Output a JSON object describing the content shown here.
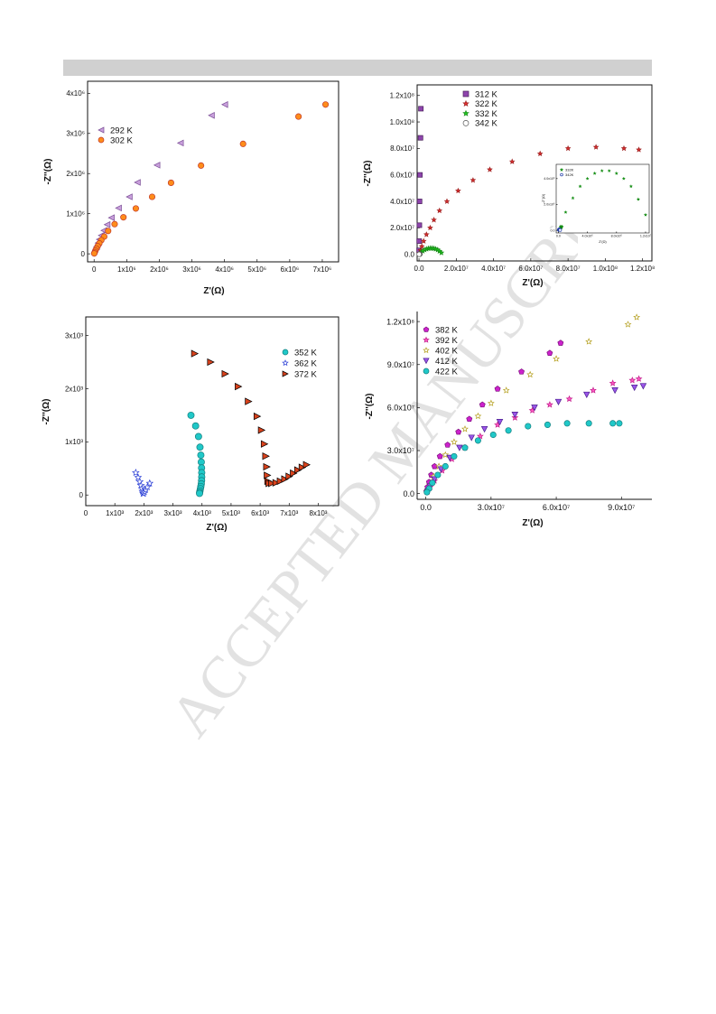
{
  "watermark": {
    "text": "ACCEPTED MANUSCRIPT",
    "color": "#dddddd"
  },
  "chart_data": [
    {
      "type": "scatter",
      "xlabel": "Z'(Ω)",
      "ylabel": "-Z''(Ω)",
      "xlim": [
        -200000,
        7500000
      ],
      "ylim": [
        -200000,
        4300000
      ],
      "xticks": [
        {
          "v": 0,
          "label": "0"
        },
        {
          "v": 1000000,
          "label": "1x10⁶"
        },
        {
          "v": 2000000,
          "label": "2x10⁶"
        },
        {
          "v": 3000000,
          "label": "3x10⁶"
        },
        {
          "v": 4000000,
          "label": "4x10⁶"
        },
        {
          "v": 5000000,
          "label": "5x10⁶"
        },
        {
          "v": 6000000,
          "label": "6x10⁶"
        },
        {
          "v": 7000000,
          "label": "7x10⁶"
        }
      ],
      "yticks": [
        {
          "v": 0,
          "label": "0"
        },
        {
          "v": 1000000,
          "label": "1x10⁶"
        },
        {
          "v": 2000000,
          "label": "2x10⁶"
        },
        {
          "v": 3000000,
          "label": "3x10⁶"
        },
        {
          "v": 4000000,
          "label": "4x10⁶"
        }
      ],
      "legend_position": "top-left",
      "series": [
        {
          "name": "292 K",
          "marker": "tri-left",
          "color": "#c9a0dc",
          "stroke": "#7a4e96",
          "x": [
            3600000,
            4010000,
            2650000,
            1930000,
            1330000,
            1080000,
            750000,
            530000,
            400000,
            300000,
            220000,
            160000,
            120000,
            80000
          ],
          "y": [
            3450000,
            3720000,
            2760000,
            2210000,
            1780000,
            1420000,
            1140000,
            900000,
            730000,
            580000,
            460000,
            360000,
            270000,
            180000
          ]
        },
        {
          "name": "302 K",
          "marker": "circle",
          "color": "#ff8c1a",
          "stroke": "#c0392b",
          "x": [
            7100000,
            6270000,
            4570000,
            3280000,
            2360000,
            1780000,
            1280000,
            900000,
            630000,
            430000,
            310000,
            220000,
            160000,
            110000,
            70000,
            40000,
            20000,
            5000
          ],
          "y": [
            3720000,
            3420000,
            2740000,
            2200000,
            1770000,
            1420000,
            1130000,
            910000,
            740000,
            570000,
            430000,
            340000,
            260000,
            190000,
            130000,
            80000,
            40000,
            10000
          ]
        }
      ]
    },
    {
      "type": "scatter",
      "xlabel": "Z'(Ω)",
      "ylabel": "-Z''(Ω)",
      "xlim": [
        -1000000,
        125000000
      ],
      "ylim": [
        -5000000,
        128000000
      ],
      "xticks": [
        {
          "v": 0,
          "label": "0.0"
        },
        {
          "v": 20000000,
          "label": "2.0x10⁷"
        },
        {
          "v": 40000000,
          "label": "4.0x10⁷"
        },
        {
          "v": 60000000,
          "label": "6.0x10⁷"
        },
        {
          "v": 80000000,
          "label": "8.0x10⁷"
        },
        {
          "v": 100000000,
          "label": "1.0x10⁸"
        },
        {
          "v": 120000000,
          "label": "1.2x10⁸"
        }
      ],
      "yticks": [
        {
          "v": 0,
          "label": "0.0"
        },
        {
          "v": 20000000,
          "label": "2.0x10⁷"
        },
        {
          "v": 40000000,
          "label": "4.0x10⁷"
        },
        {
          "v": 60000000,
          "label": "6.0x10⁷"
        },
        {
          "v": 80000000,
          "label": "8.0x10⁷"
        },
        {
          "v": 100000000,
          "label": "1.0x10⁸"
        },
        {
          "v": 120000000,
          "label": "1.2x10⁸"
        }
      ],
      "legend_position": "top-left",
      "series": [
        {
          "name": "312 K",
          "marker": "square",
          "color": "#8e44ad",
          "stroke": "#4a235a",
          "x": [
            1000000,
            800000,
            500000,
            300000,
            200000,
            100000,
            50000
          ],
          "y": [
            110000000,
            88000000,
            60000000,
            40000000,
            22000000,
            10000000,
            3000000
          ]
        },
        {
          "name": "322 K",
          "marker": "star",
          "color": "#e03030",
          "stroke": "#9b1c1c",
          "x": [
            118000000,
            110000000,
            95000000,
            80000000,
            65000000,
            50000000,
            38000000,
            29000000,
            21000000,
            15000000,
            11000000,
            8000000,
            6000000,
            4000000,
            2500000,
            1500000,
            800000,
            300000
          ],
          "y": [
            79000000,
            80000000,
            81000000,
            80000000,
            76000000,
            70000000,
            64000000,
            56000000,
            48000000,
            40000000,
            33000000,
            26000000,
            20000000,
            15000000,
            10000000,
            6000000,
            3000000,
            1000000
          ]
        },
        {
          "name": "332 K",
          "marker": "star",
          "color": "#22cc22",
          "stroke": "#138a13",
          "x": [
            12000000,
            11000000,
            10000000,
            9000000,
            8000000,
            7000000,
            6000000,
            5000000,
            4000000,
            3000000,
            2000000,
            1000000,
            300000
          ],
          "y": [
            1200000,
            2400000,
            3400000,
            4000000,
            4400000,
            4600000,
            4600000,
            4400000,
            4000000,
            3400000,
            2500000,
            1400000,
            300000
          ]
        },
        {
          "name": "342 K",
          "marker": "circle-open",
          "color": "#ffffff",
          "stroke": "#555555",
          "x": [
            500000,
            300000,
            100000
          ],
          "y": [
            200000,
            100000,
            30000
          ]
        }
      ],
      "inset": {
        "xlabel": "Z'(Ω)",
        "ylabel": "-Z''(Ω)",
        "xlim": [
          -300000,
          12500000
        ],
        "ylim": [
          -200000,
          5100000
        ],
        "xticks": [
          {
            "v": 0,
            "label": "0.0"
          },
          {
            "v": 4000000,
            "label": "4.0x10⁶"
          },
          {
            "v": 8000000,
            "label": "8.0x10⁶"
          },
          {
            "v": 12000000,
            "label": "1.2x10⁷"
          }
        ],
        "yticks": [
          {
            "v": 0,
            "label": "0.0"
          },
          {
            "v": 2000000,
            "label": "2.0x10⁶"
          },
          {
            "v": 4000000,
            "label": "4.0x10⁶"
          }
        ],
        "series": [
          {
            "name": "332K",
            "marker": "star",
            "color": "#22cc22",
            "stroke": "#138a13"
          },
          {
            "name": "342K",
            "marker": "circle-open",
            "color": "#ffffff",
            "stroke": "#1f3aa8"
          }
        ]
      }
    },
    {
      "type": "scatter",
      "xlabel": "Z'(Ω)",
      "ylabel": "-Z''(Ω)",
      "xlim": [
        0,
        8700
      ],
      "ylim": [
        -200,
        3350
      ],
      "xticks": [
        {
          "v": 0,
          "label": "0"
        },
        {
          "v": 1000,
          "label": "1x10³"
        },
        {
          "v": 2000,
          "label": "2x10³"
        },
        {
          "v": 3000,
          "label": "3x10³"
        },
        {
          "v": 4000,
          "label": "4x10³"
        },
        {
          "v": 5000,
          "label": "5x10³"
        },
        {
          "v": 6000,
          "label": "6x10³"
        },
        {
          "v": 7000,
          "label": "7x10³"
        },
        {
          "v": 8000,
          "label": "8x10³"
        }
      ],
      "yticks": [
        {
          "v": 0,
          "label": "0"
        },
        {
          "v": 1000,
          "label": "1x10³"
        },
        {
          "v": 2000,
          "label": "2x10³"
        },
        {
          "v": 3000,
          "label": "3x10³"
        }
      ],
      "legend_position": "top-right",
      "series": [
        {
          "name": "352 K",
          "marker": "circle",
          "color": "#20c8c8",
          "stroke": "#138080",
          "x": [
            3620,
            3780,
            3880,
            3930,
            3960,
            3975,
            3985,
            3990,
            3990,
            3985,
            3975,
            3960,
            3945,
            3930,
            3920,
            3915
          ],
          "y": [
            1500,
            1300,
            1100,
            900,
            750,
            620,
            510,
            420,
            340,
            270,
            210,
            160,
            120,
            80,
            50,
            30
          ]
        },
        {
          "name": "362 K",
          "marker": "star",
          "color": "#ffffff",
          "stroke": "#2b3fd6",
          "x": [
            1720,
            1800,
            1860,
            1900,
            1930,
            1950,
            1970,
            1990,
            2020,
            2060,
            2120,
            2200
          ],
          "y": [
            420,
            330,
            250,
            180,
            120,
            70,
            30,
            30,
            60,
            100,
            150,
            220
          ]
        },
        {
          "name": "372 K",
          "marker": "tri-right",
          "color": "#d9421c",
          "stroke": "#000000",
          "x": [
            3750,
            4300,
            4800,
            5250,
            5600,
            5900,
            6050,
            6150,
            6200,
            6230,
            6250,
            6270,
            6310,
            6400,
            6550,
            6700,
            6850,
            7000,
            7150,
            7300,
            7450,
            7600
          ],
          "y": [
            2660,
            2500,
            2280,
            2040,
            1760,
            1480,
            1220,
            960,
            730,
            530,
            370,
            260,
            220,
            220,
            230,
            260,
            300,
            350,
            410,
            470,
            520,
            570
          ]
        }
      ]
    },
    {
      "type": "scatter",
      "xlabel": "Z'(Ω)",
      "ylabel": "-Z''(Ω)",
      "xlim": [
        -4000000,
        104000000
      ],
      "ylim": [
        -4000000,
        127000000
      ],
      "xticks": [
        {
          "v": 0,
          "label": "0.0"
        },
        {
          "v": 30000000,
          "label": "3.0x10⁷"
        },
        {
          "v": 60000000,
          "label": "6.0x10⁷"
        },
        {
          "v": 90000000,
          "label": "9.0x10⁷"
        }
      ],
      "yticks": [
        {
          "v": 0,
          "label": "0.0"
        },
        {
          "v": 30000000,
          "label": "3.0x10⁷"
        },
        {
          "v": 60000000,
          "label": "6.0x10⁷"
        },
        {
          "v": 90000000,
          "label": "9.0x10⁷"
        },
        {
          "v": 120000000,
          "label": "1.2x10⁸"
        }
      ],
      "legend_position": "top-left",
      "series": [
        {
          "name": "382 K",
          "marker": "pentagon",
          "color": "#cc22cc",
          "stroke": "#7d117d",
          "x": [
            62000000,
            57000000,
            44000000,
            33000000,
            26000000,
            20000000,
            15000000,
            10000000,
            6500000,
            4000000,
            2500000,
            1500000,
            800000,
            300000
          ],
          "y": [
            105000000,
            98000000,
            85000000,
            73000000,
            62000000,
            52000000,
            43000000,
            34000000,
            26000000,
            19000000,
            13000000,
            8000000,
            4500000,
            1500000
          ]
        },
        {
          "name": "392 K",
          "marker": "star",
          "color": "#ff5ec4",
          "stroke": "#c2188a",
          "x": [
            98000000,
            95000000,
            86000000,
            77000000,
            66000000,
            57000000,
            49000000,
            41000000,
            33000000,
            25000000,
            18000000,
            12000000,
            7500000,
            4000000,
            2000000,
            800000
          ],
          "y": [
            80000000,
            79000000,
            77000000,
            72000000,
            66000000,
            62000000,
            58000000,
            53000000,
            48000000,
            40000000,
            32000000,
            24000000,
            16000000,
            9000000,
            4500000,
            1500000
          ]
        },
        {
          "name": "402 K",
          "marker": "star",
          "color": "#ffffff",
          "stroke": "#b5a020",
          "x": [
            97000000,
            93000000,
            75000000,
            60000000,
            48000000,
            37000000,
            30000000,
            24000000,
            18000000,
            13000000,
            9000000,
            6000000,
            3500000,
            1800000,
            700000
          ],
          "y": [
            123000000,
            118000000,
            106000000,
            94000000,
            83000000,
            72000000,
            63000000,
            54000000,
            45000000,
            36000000,
            27000000,
            19000000,
            12000000,
            6000000,
            2000000
          ]
        },
        {
          "name": "412 K",
          "marker": "tri-down",
          "color": "#9a55e8",
          "stroke": "#4b1f8f",
          "x": [
            100000000,
            96000000,
            87000000,
            74000000,
            61000000,
            50000000,
            41000000,
            34000000,
            27000000,
            21000000,
            15500000,
            11000000,
            7000000,
            4000000,
            2000000,
            800000
          ],
          "y": [
            75000000,
            74000000,
            72000000,
            69000000,
            64000000,
            60000000,
            55000000,
            50000000,
            45000000,
            39000000,
            32000000,
            25000000,
            17000000,
            10000000,
            5000000,
            1500000
          ]
        },
        {
          "name": "422 K",
          "marker": "circle",
          "color": "#20c8c8",
          "stroke": "#138080",
          "x": [
            89000000,
            86000000,
            75000000,
            65000000,
            56000000,
            47000000,
            38000000,
            31000000,
            24000000,
            18000000,
            13000000,
            9000000,
            5500000,
            3000000,
            1500000,
            500000
          ],
          "y": [
            49000000,
            49000000,
            49000000,
            49000000,
            48000000,
            47000000,
            44000000,
            41000000,
            37000000,
            32000000,
            26000000,
            19000000,
            13000000,
            7500000,
            3500000,
            1000000
          ]
        }
      ]
    }
  ]
}
